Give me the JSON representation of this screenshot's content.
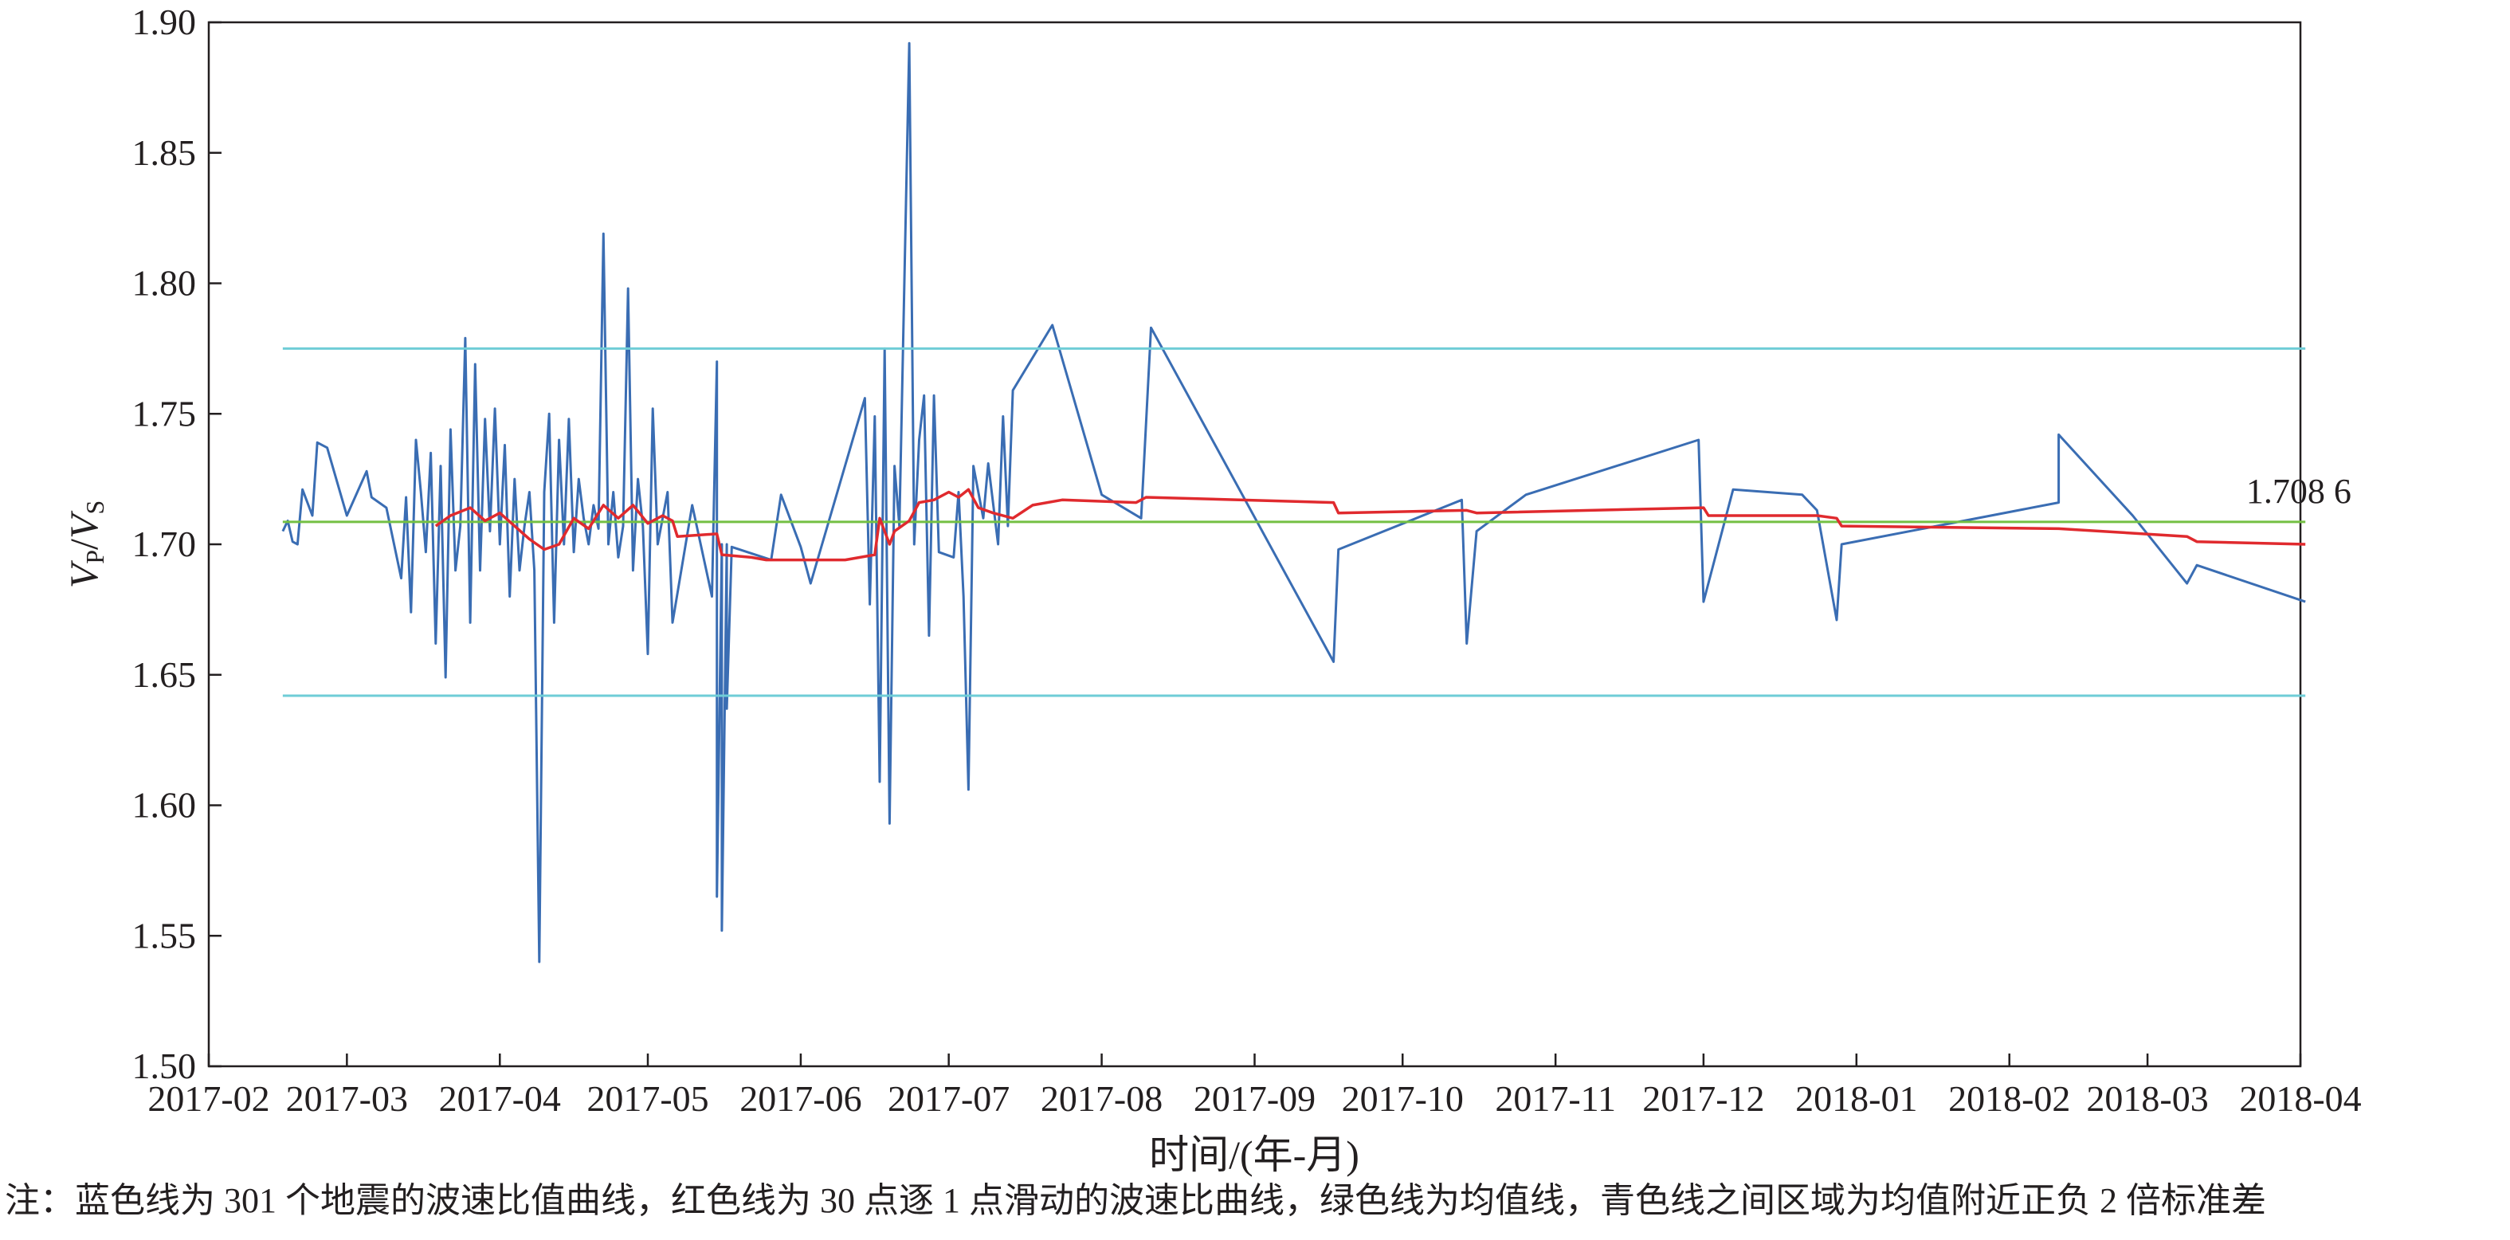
{
  "chart_data": {
    "type": "line",
    "title": "",
    "xlabel": "时间/(年-月)",
    "ylabel": {
      "main": "V",
      "sub_p": "P",
      "slash": "/",
      "main2": "V",
      "sub_s": "S"
    },
    "ylim": [
      1.5,
      1.9
    ],
    "yticks": [
      "1.50",
      "1.55",
      "1.60",
      "1.65",
      "1.70",
      "1.75",
      "1.80",
      "1.85",
      "1.90"
    ],
    "xlim": [
      "2017-02-01",
      "2018-04-01"
    ],
    "xticks": [
      "2017-02",
      "2017-03",
      "2017-04",
      "2017-05",
      "2017-06",
      "2017-07",
      "2017-08",
      "2017-09",
      "2017-10",
      "2017-11",
      "2017-12",
      "2018-01",
      "2018-02",
      "2018-03",
      "2018-04"
    ],
    "grid": false,
    "legend": "none",
    "annotations": [
      {
        "text": "1.708 6",
        "x": "2018-03-21",
        "y": 1.7086
      }
    ],
    "series": [
      {
        "id": "wave-speed-ratio",
        "color": "#3a6db3",
        "points": [
          [
            "2017-02-16",
            1.705
          ],
          [
            "2017-02-17",
            1.709
          ],
          [
            "2017-02-18",
            1.701
          ],
          [
            "2017-02-19",
            1.7
          ],
          [
            "2017-02-20",
            1.721
          ],
          [
            "2017-02-22",
            1.711
          ],
          [
            "2017-02-23",
            1.739
          ],
          [
            "2017-02-25",
            1.737
          ],
          [
            "2017-03-01",
            1.711
          ],
          [
            "2017-03-05",
            1.728
          ],
          [
            "2017-03-06",
            1.718
          ],
          [
            "2017-03-09",
            1.714
          ],
          [
            "2017-03-12",
            1.687
          ],
          [
            "2017-03-13",
            1.718
          ],
          [
            "2017-03-14",
            1.674
          ],
          [
            "2017-03-15",
            1.74
          ],
          [
            "2017-03-16",
            1.72
          ],
          [
            "2017-03-17",
            1.697
          ],
          [
            "2017-03-18",
            1.735
          ],
          [
            "2017-03-19",
            1.662
          ],
          [
            "2017-03-20",
            1.73
          ],
          [
            "2017-03-21",
            1.649
          ],
          [
            "2017-03-22",
            1.744
          ],
          [
            "2017-03-23",
            1.69
          ],
          [
            "2017-03-24",
            1.707
          ],
          [
            "2017-03-25",
            1.779
          ],
          [
            "2017-03-26",
            1.67
          ],
          [
            "2017-03-27",
            1.769
          ],
          [
            "2017-03-28",
            1.69
          ],
          [
            "2017-03-29",
            1.748
          ],
          [
            "2017-03-30",
            1.705
          ],
          [
            "2017-03-31",
            1.752
          ],
          [
            "2017-04-01",
            1.7
          ],
          [
            "2017-04-02",
            1.738
          ],
          [
            "2017-04-03",
            1.68
          ],
          [
            "2017-04-04",
            1.725
          ],
          [
            "2017-04-05",
            1.69
          ],
          [
            "2017-04-06",
            1.707
          ],
          [
            "2017-04-07",
            1.72
          ],
          [
            "2017-04-08",
            1.69
          ],
          [
            "2017-04-09",
            1.54
          ],
          [
            "2017-04-10",
            1.72
          ],
          [
            "2017-04-11",
            1.75
          ],
          [
            "2017-04-12",
            1.67
          ],
          [
            "2017-04-13",
            1.74
          ],
          [
            "2017-04-14",
            1.7
          ],
          [
            "2017-04-15",
            1.748
          ],
          [
            "2017-04-16",
            1.697
          ],
          [
            "2017-04-17",
            1.725
          ],
          [
            "2017-04-18",
            1.71
          ],
          [
            "2017-04-19",
            1.7
          ],
          [
            "2017-04-20",
            1.715
          ],
          [
            "2017-04-21",
            1.706
          ],
          [
            "2017-04-22",
            1.819
          ],
          [
            "2017-04-23",
            1.7
          ],
          [
            "2017-04-24",
            1.72
          ],
          [
            "2017-04-25",
            1.695
          ],
          [
            "2017-04-26",
            1.707
          ],
          [
            "2017-04-27",
            1.798
          ],
          [
            "2017-04-28",
            1.69
          ],
          [
            "2017-04-29",
            1.725
          ],
          [
            "2017-04-30",
            1.707
          ],
          [
            "2017-05-01",
            1.658
          ],
          [
            "2017-05-02",
            1.752
          ],
          [
            "2017-05-03",
            1.7
          ],
          [
            "2017-05-05",
            1.72
          ],
          [
            "2017-05-06",
            1.67
          ],
          [
            "2017-05-10",
            1.715
          ],
          [
            "2017-05-14",
            1.68
          ],
          [
            "2017-05-15",
            1.77
          ],
          [
            "2017-05-15",
            1.565
          ],
          [
            "2017-05-16",
            1.7
          ],
          [
            "2017-05-16",
            1.552
          ],
          [
            "2017-05-17",
            1.7
          ],
          [
            "2017-05-17",
            1.637
          ],
          [
            "2017-05-18",
            1.699
          ],
          [
            "2017-05-26",
            1.694
          ],
          [
            "2017-05-28",
            1.719
          ],
          [
            "2017-06-01",
            1.699
          ],
          [
            "2017-06-03",
            1.685
          ],
          [
            "2017-06-14",
            1.756
          ],
          [
            "2017-06-15",
            1.677
          ],
          [
            "2017-06-16",
            1.749
          ],
          [
            "2017-06-17",
            1.609
          ],
          [
            "2017-06-18",
            1.775
          ],
          [
            "2017-06-19",
            1.593
          ],
          [
            "2017-06-20",
            1.73
          ],
          [
            "2017-06-21",
            1.707
          ],
          [
            "2017-06-23",
            1.892
          ],
          [
            "2017-06-24",
            1.7
          ],
          [
            "2017-06-25",
            1.74
          ],
          [
            "2017-06-26",
            1.757
          ],
          [
            "2017-06-27",
            1.665
          ],
          [
            "2017-06-28",
            1.757
          ],
          [
            "2017-06-29",
            1.697
          ],
          [
            "2017-07-02",
            1.695
          ],
          [
            "2017-07-03",
            1.72
          ],
          [
            "2017-07-04",
            1.68
          ],
          [
            "2017-07-05",
            1.606
          ],
          [
            "2017-07-06",
            1.73
          ],
          [
            "2017-07-08",
            1.71
          ],
          [
            "2017-07-09",
            1.731
          ],
          [
            "2017-07-11",
            1.7
          ],
          [
            "2017-07-12",
            1.749
          ],
          [
            "2017-07-13",
            1.707
          ],
          [
            "2017-07-14",
            1.759
          ],
          [
            "2017-07-22",
            1.784
          ],
          [
            "2017-08-01",
            1.719
          ],
          [
            "2017-08-09",
            1.71
          ],
          [
            "2017-08-11",
            1.783
          ],
          [
            "2017-09-17",
            1.655
          ],
          [
            "2017-09-18",
            1.698
          ],
          [
            "2017-10-13",
            1.717
          ],
          [
            "2017-10-14",
            1.662
          ],
          [
            "2017-10-16",
            1.705
          ],
          [
            "2017-10-26",
            1.719
          ],
          [
            "2017-11-30",
            1.74
          ],
          [
            "2017-12-01",
            1.678
          ],
          [
            "2017-12-07",
            1.721
          ],
          [
            "2017-12-21",
            1.719
          ],
          [
            "2017-12-24",
            1.713
          ],
          [
            "2017-12-28",
            1.671
          ],
          [
            "2017-12-29",
            1.7
          ],
          [
            "2018-02-11",
            1.716
          ],
          [
            "2018-02-11",
            1.742
          ],
          [
            "2018-02-26",
            1.711
          ],
          [
            "2018-03-09",
            1.685
          ],
          [
            "2018-03-11",
            1.692
          ],
          [
            "2018-04-02",
            1.678
          ]
        ]
      },
      {
        "id": "sliding-ratio",
        "color": "#e02a2e",
        "points": [
          [
            "2017-03-19",
            1.707
          ],
          [
            "2017-03-22",
            1.711
          ],
          [
            "2017-03-26",
            1.714
          ],
          [
            "2017-03-29",
            1.709
          ],
          [
            "2017-04-01",
            1.712
          ],
          [
            "2017-04-04",
            1.707
          ],
          [
            "2017-04-07",
            1.702
          ],
          [
            "2017-04-10",
            1.698
          ],
          [
            "2017-04-13",
            1.7
          ],
          [
            "2017-04-16",
            1.71
          ],
          [
            "2017-04-19",
            1.706
          ],
          [
            "2017-04-22",
            1.715
          ],
          [
            "2017-04-25",
            1.71
          ],
          [
            "2017-04-28",
            1.715
          ],
          [
            "2017-05-01",
            1.708
          ],
          [
            "2017-05-04",
            1.711
          ],
          [
            "2017-05-06",
            1.709
          ],
          [
            "2017-05-07",
            1.703
          ],
          [
            "2017-05-15",
            1.704
          ],
          [
            "2017-05-16",
            1.696
          ],
          [
            "2017-05-22",
            1.695
          ],
          [
            "2017-05-25",
            1.694
          ],
          [
            "2017-06-10",
            1.694
          ],
          [
            "2017-06-16",
            1.696
          ],
          [
            "2017-06-17",
            1.71
          ],
          [
            "2017-06-19",
            1.7
          ],
          [
            "2017-06-20",
            1.705
          ],
          [
            "2017-06-23",
            1.709
          ],
          [
            "2017-06-25",
            1.716
          ],
          [
            "2017-06-28",
            1.717
          ],
          [
            "2017-07-01",
            1.72
          ],
          [
            "2017-07-03",
            1.718
          ],
          [
            "2017-07-05",
            1.721
          ],
          [
            "2017-07-07",
            1.714
          ],
          [
            "2017-07-10",
            1.712
          ],
          [
            "2017-07-14",
            1.71
          ],
          [
            "2017-07-18",
            1.715
          ],
          [
            "2017-07-24",
            1.717
          ],
          [
            "2017-08-08",
            1.716
          ],
          [
            "2017-08-10",
            1.718
          ],
          [
            "2017-09-17",
            1.716
          ],
          [
            "2017-09-18",
            1.712
          ],
          [
            "2017-10-14",
            1.713
          ],
          [
            "2017-10-16",
            1.712
          ],
          [
            "2017-12-01",
            1.714
          ],
          [
            "2017-12-02",
            1.711
          ],
          [
            "2017-12-24",
            1.711
          ],
          [
            "2017-12-28",
            1.71
          ],
          [
            "2017-12-29",
            1.707
          ],
          [
            "2018-02-11",
            1.706
          ],
          [
            "2018-03-09",
            1.703
          ],
          [
            "2018-03-11",
            1.701
          ],
          [
            "2018-04-02",
            1.7
          ]
        ]
      },
      {
        "id": "mean-line",
        "color": "#74c043",
        "y": 1.7086,
        "x_range": [
          "2017-02-16",
          "2018-04-02"
        ]
      },
      {
        "id": "upper-2sd-line",
        "color": "#6fcdd7",
        "y": 1.775,
        "x_range": [
          "2017-02-16",
          "2018-04-02"
        ]
      },
      {
        "id": "lower-2sd-line",
        "color": "#6fcdd7",
        "y": 1.642,
        "x_range": [
          "2017-02-16",
          "2018-04-02"
        ]
      }
    ]
  },
  "footnote": "注：蓝色线为 301 个地震的波速比值曲线，红色线为 30 点逐 1 点滑动的波速比曲线，绿色线为均值线，青色线之间区域为均值附近正负 2 倍标准差"
}
